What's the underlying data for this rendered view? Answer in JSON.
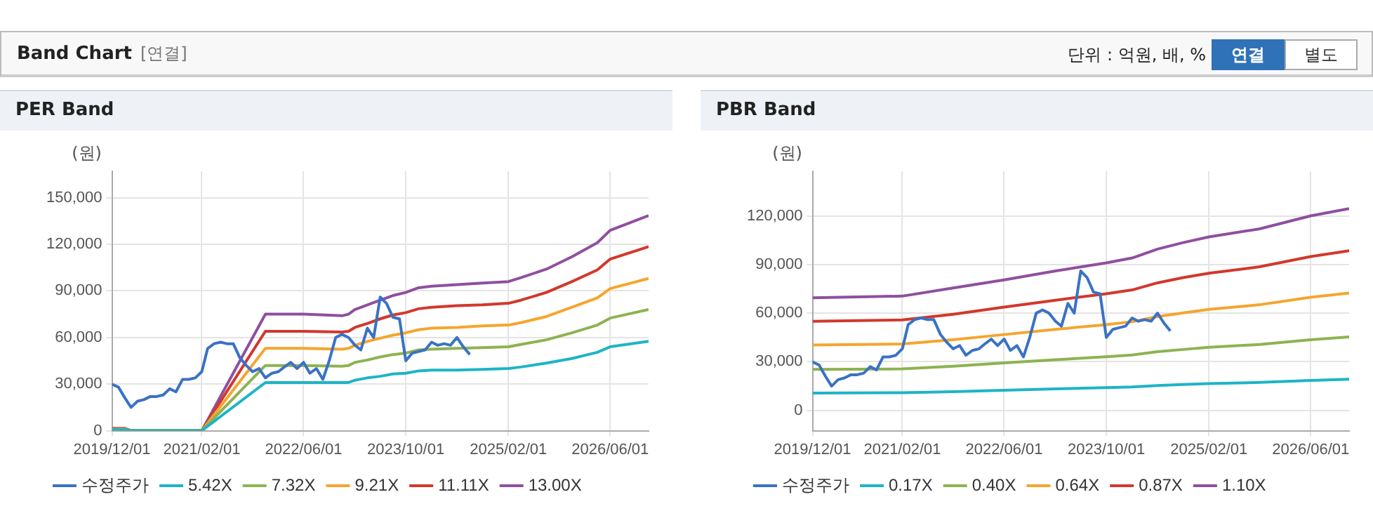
{
  "chart_data": [
    {
      "type": "other",
      "title": "Band Chart",
      "annotations": [
        "[연결]",
        "단위 : 억원, 배, %",
        "연결",
        "별도"
      ]
    },
    {
      "type": "line",
      "title": "PER Band",
      "ylabel": "(원)",
      "marker": "none",
      "grid": true,
      "legend": "bottom left",
      "xlim": [
        "2019-12-01",
        "2026-12-01"
      ],
      "ylim": [
        0,
        167000
      ],
      "xticks": [
        {
          "value": "2019-12-01",
          "label": "2019/12/01"
        },
        {
          "value": "2021-02-01",
          "label": "2021/02/01"
        },
        {
          "value": "2022-06-01",
          "label": "2022/06/01"
        },
        {
          "value": "2023-10-01",
          "label": "2023/10/01"
        },
        {
          "value": "2025-02-01",
          "label": "2025/02/01"
        },
        {
          "value": "2026-06-01",
          "label": "2026/06/01"
        }
      ],
      "yticks": [
        {
          "value": 0,
          "label": "0"
        },
        {
          "value": 30000,
          "label": "30,000"
        },
        {
          "value": 60000,
          "label": "60,000"
        },
        {
          "value": 90000,
          "label": "90,000"
        },
        {
          "value": 120000,
          "label": "120,000"
        },
        {
          "value": 150000,
          "label": "150,000"
        }
      ],
      "series": [
        {
          "name": "수정주가",
          "color": "#3a72c4",
          "x": [
            "2019-12",
            "2020-01",
            "2020-02",
            "2020-03",
            "2020-04",
            "2020-05",
            "2020-06",
            "2020-07",
            "2020-08",
            "2020-09",
            "2020-10",
            "2020-11",
            "2020-12",
            "2021-01",
            "2021-02",
            "2021-03",
            "2021-04",
            "2021-05",
            "2021-06",
            "2021-07",
            "2021-08",
            "2021-09",
            "2021-10",
            "2021-11",
            "2021-12",
            "2022-01",
            "2022-02",
            "2022-03",
            "2022-04",
            "2022-05",
            "2022-06",
            "2022-07",
            "2022-08",
            "2022-09",
            "2022-10",
            "2022-11",
            "2022-12",
            "2023-01",
            "2023-02",
            "2023-03",
            "2023-04",
            "2023-05",
            "2023-06",
            "2023-07",
            "2023-08",
            "2023-09",
            "2023-10",
            "2023-11",
            "2023-12",
            "2024-01",
            "2024-02",
            "2024-03",
            "2024-04",
            "2024-05",
            "2024-06",
            "2024-07",
            "2024-08"
          ],
          "values": [
            30000,
            28000,
            21000,
            15000,
            19000,
            20000,
            22000,
            22000,
            23000,
            27000,
            25000,
            33000,
            33000,
            34000,
            38000,
            53000,
            56000,
            57000,
            56000,
            56000,
            47000,
            42000,
            38000,
            40000,
            34000,
            37000,
            38000,
            41000,
            44000,
            40000,
            44000,
            37000,
            40000,
            33000,
            45000,
            60000,
            62000,
            60000,
            55000,
            52000,
            66000,
            60000,
            86000,
            82000,
            73000,
            72000,
            45000,
            50000,
            51000,
            52000,
            57000,
            55000,
            56000,
            55000,
            60000,
            54000,
            49000
          ]
        },
        {
          "name": "5.42X",
          "color": "#1db4c6",
          "x": [
            "2019-12",
            "2020-02",
            "2020-03",
            "2021-02",
            "2021-12",
            "2022-06",
            "2022-12",
            "2023-01",
            "2023-02",
            "2023-04",
            "2023-06",
            "2023-08",
            "2023-10",
            "2023-12",
            "2024-02",
            "2024-06",
            "2024-10",
            "2025-02",
            "2025-04",
            "2025-08",
            "2025-12",
            "2026-04",
            "2026-06",
            "2026-12"
          ],
          "values": [
            600,
            600,
            0,
            0,
            31000,
            31000,
            31000,
            31000,
            32500,
            34000,
            35000,
            36500,
            37000,
            38500,
            39000,
            39000,
            39500,
            40000,
            41000,
            43500,
            46500,
            50500,
            54000,
            57500
          ]
        },
        {
          "name": "7.32X",
          "color": "#8db350",
          "x": [
            "2019-12",
            "2020-02",
            "2020-03",
            "2021-02",
            "2021-12",
            "2022-06",
            "2022-12",
            "2023-01",
            "2023-02",
            "2023-04",
            "2023-06",
            "2023-08",
            "2023-10",
            "2023-12",
            "2024-02",
            "2024-06",
            "2024-10",
            "2025-02",
            "2025-04",
            "2025-08",
            "2025-12",
            "2026-04",
            "2026-06",
            "2026-12"
          ],
          "values": [
            850,
            850,
            0,
            0,
            42000,
            42000,
            41500,
            42000,
            44000,
            45500,
            47500,
            49000,
            50000,
            52000,
            52500,
            53000,
            53500,
            54000,
            55500,
            58500,
            63000,
            68000,
            72500,
            78000
          ]
        },
        {
          "name": "9.21X",
          "color": "#f5a52e",
          "x": [
            "2019-12",
            "2020-02",
            "2020-03",
            "2021-02",
            "2021-12",
            "2022-06",
            "2022-12",
            "2023-01",
            "2023-02",
            "2023-04",
            "2023-06",
            "2023-08",
            "2023-10",
            "2023-12",
            "2024-02",
            "2024-06",
            "2024-10",
            "2025-02",
            "2025-04",
            "2025-08",
            "2025-12",
            "2026-04",
            "2026-06",
            "2026-12"
          ],
          "values": [
            1000,
            1000,
            0,
            0,
            53000,
            53000,
            52500,
            53000,
            55000,
            57500,
            59500,
            61500,
            63000,
            65000,
            66000,
            66500,
            67500,
            68000,
            69500,
            73500,
            79500,
            85500,
            91500,
            98000
          ]
        },
        {
          "name": "11.11X",
          "color": "#d2382c",
          "x": [
            "2019-12",
            "2020-02",
            "2020-03",
            "2021-02",
            "2021-12",
            "2022-06",
            "2022-12",
            "2023-01",
            "2023-02",
            "2023-04",
            "2023-06",
            "2023-08",
            "2023-10",
            "2023-12",
            "2024-02",
            "2024-06",
            "2024-10",
            "2025-02",
            "2025-04",
            "2025-08",
            "2025-12",
            "2026-04",
            "2026-06",
            "2026-12"
          ],
          "values": [
            1300,
            1300,
            0,
            0,
            64000,
            64000,
            63500,
            64000,
            66500,
            69000,
            72000,
            74500,
            76000,
            78500,
            79500,
            80500,
            81000,
            82000,
            84000,
            89000,
            96000,
            103500,
            110500,
            118500
          ]
        },
        {
          "name": "13.00X",
          "color": "#8f4f9f",
          "x": [
            "2019-12",
            "2020-02",
            "2020-03",
            "2021-02",
            "2021-12",
            "2022-06",
            "2022-12",
            "2023-01",
            "2023-02",
            "2023-04",
            "2023-06",
            "2023-08",
            "2023-10",
            "2023-12",
            "2024-02",
            "2024-06",
            "2024-10",
            "2025-02",
            "2025-04",
            "2025-08",
            "2025-12",
            "2026-04",
            "2026-06",
            "2026-12"
          ],
          "values": [
            1500,
            1500,
            0,
            0,
            75000,
            75000,
            74000,
            75000,
            78000,
            81000,
            84000,
            87000,
            89000,
            92000,
            93000,
            94000,
            95000,
            96000,
            98500,
            104000,
            112000,
            121000,
            129000,
            138500
          ]
        }
      ]
    },
    {
      "type": "line",
      "title": "PBR Band",
      "ylabel": "(원)",
      "marker": "none",
      "grid": true,
      "legend": "bottom left",
      "xlim": [
        "2019-12-01",
        "2026-12-01"
      ],
      "ylim": [
        -12500,
        147500
      ],
      "xticks": [
        {
          "value": "2019-12-01",
          "label": "2019/12/01"
        },
        {
          "value": "2021-02-01",
          "label": "2021/02/01"
        },
        {
          "value": "2022-06-01",
          "label": "2022/06/01"
        },
        {
          "value": "2023-10-01",
          "label": "2023/10/01"
        },
        {
          "value": "2025-02-01",
          "label": "2025/02/01"
        },
        {
          "value": "2026-06-01",
          "label": "2026/06/01"
        }
      ],
      "yticks": [
        {
          "value": 0,
          "label": "0"
        },
        {
          "value": 30000,
          "label": "30,000"
        },
        {
          "value": 60000,
          "label": "60,000"
        },
        {
          "value": 90000,
          "label": "90,000"
        },
        {
          "value": 120000,
          "label": "120,000"
        }
      ],
      "series": [
        {
          "name": "수정주가",
          "color": "#3a72c4",
          "x": [
            "2019-12",
            "2020-01",
            "2020-02",
            "2020-03",
            "2020-04",
            "2020-05",
            "2020-06",
            "2020-07",
            "2020-08",
            "2020-09",
            "2020-10",
            "2020-11",
            "2020-12",
            "2021-01",
            "2021-02",
            "2021-03",
            "2021-04",
            "2021-05",
            "2021-06",
            "2021-07",
            "2021-08",
            "2021-09",
            "2021-10",
            "2021-11",
            "2021-12",
            "2022-01",
            "2022-02",
            "2022-03",
            "2022-04",
            "2022-05",
            "2022-06",
            "2022-07",
            "2022-08",
            "2022-09",
            "2022-10",
            "2022-11",
            "2022-12",
            "2023-01",
            "2023-02",
            "2023-03",
            "2023-04",
            "2023-05",
            "2023-06",
            "2023-07",
            "2023-08",
            "2023-09",
            "2023-10",
            "2023-11",
            "2023-12",
            "2024-01",
            "2024-02",
            "2024-03",
            "2024-04",
            "2024-05",
            "2024-06",
            "2024-07",
            "2024-08"
          ],
          "values": [
            30000,
            28000,
            21000,
            15000,
            19000,
            20000,
            22000,
            22000,
            23000,
            27000,
            25000,
            33000,
            33000,
            34000,
            38000,
            53000,
            56000,
            57000,
            56000,
            56000,
            47000,
            42000,
            38000,
            40000,
            34000,
            37000,
            38000,
            41000,
            44000,
            40000,
            44000,
            37000,
            40000,
            33000,
            45000,
            60000,
            62000,
            60000,
            55000,
            52000,
            66000,
            60000,
            86000,
            82000,
            73000,
            72000,
            45000,
            50000,
            51000,
            52000,
            57000,
            55000,
            56000,
            55000,
            60000,
            54000,
            49000
          ]
        },
        {
          "name": "0.17X",
          "color": "#1db4c6",
          "x": [
            "2019-12",
            "2021-02",
            "2021-10",
            "2022-06",
            "2023-02",
            "2023-10",
            "2024-02",
            "2024-06",
            "2024-10",
            "2025-02",
            "2025-10",
            "2026-06",
            "2026-12"
          ],
          "values": [
            10700,
            10900,
            11600,
            12400,
            13300,
            14100,
            14500,
            15400,
            16000,
            16500,
            17300,
            18500,
            19200
          ]
        },
        {
          "name": "0.40X",
          "color": "#8db350",
          "x": [
            "2019-12",
            "2021-02",
            "2021-10",
            "2022-06",
            "2023-02",
            "2023-10",
            "2024-02",
            "2024-06",
            "2024-10",
            "2025-02",
            "2025-10",
            "2026-06",
            "2026-12"
          ],
          "values": [
            25300,
            25600,
            27300,
            29300,
            31300,
            33100,
            34200,
            36200,
            37600,
            38900,
            40700,
            43600,
            45300
          ]
        },
        {
          "name": "0.64X",
          "color": "#f5a52e",
          "x": [
            "2019-12",
            "2021-02",
            "2021-10",
            "2022-06",
            "2023-02",
            "2023-10",
            "2024-02",
            "2024-06",
            "2024-10",
            "2025-02",
            "2025-10",
            "2026-06",
            "2026-12"
          ],
          "values": [
            40400,
            41000,
            43600,
            46800,
            50000,
            52900,
            54700,
            57900,
            60200,
            62300,
            65200,
            69800,
            72400
          ]
        },
        {
          "name": "0.87X",
          "color": "#d2382c",
          "x": [
            "2019-12",
            "2021-02",
            "2021-10",
            "2022-06",
            "2023-02",
            "2023-10",
            "2024-02",
            "2024-06",
            "2024-10",
            "2025-02",
            "2025-10",
            "2026-06",
            "2026-12"
          ],
          "values": [
            55000,
            55800,
            59300,
            63700,
            68000,
            72000,
            74300,
            78700,
            81900,
            84600,
            88600,
            94900,
            98500
          ]
        },
        {
          "name": "1.10X",
          "color": "#8f4f9f",
          "x": [
            "2019-12",
            "2021-02",
            "2021-10",
            "2022-06",
            "2023-02",
            "2023-10",
            "2024-02",
            "2024-06",
            "2024-10",
            "2025-02",
            "2025-10",
            "2026-06",
            "2026-12"
          ],
          "values": [
            69500,
            70500,
            75500,
            80500,
            86000,
            91000,
            94000,
            99500,
            103500,
            107000,
            112000,
            120000,
            124500
          ]
        }
      ]
    }
  ]
}
